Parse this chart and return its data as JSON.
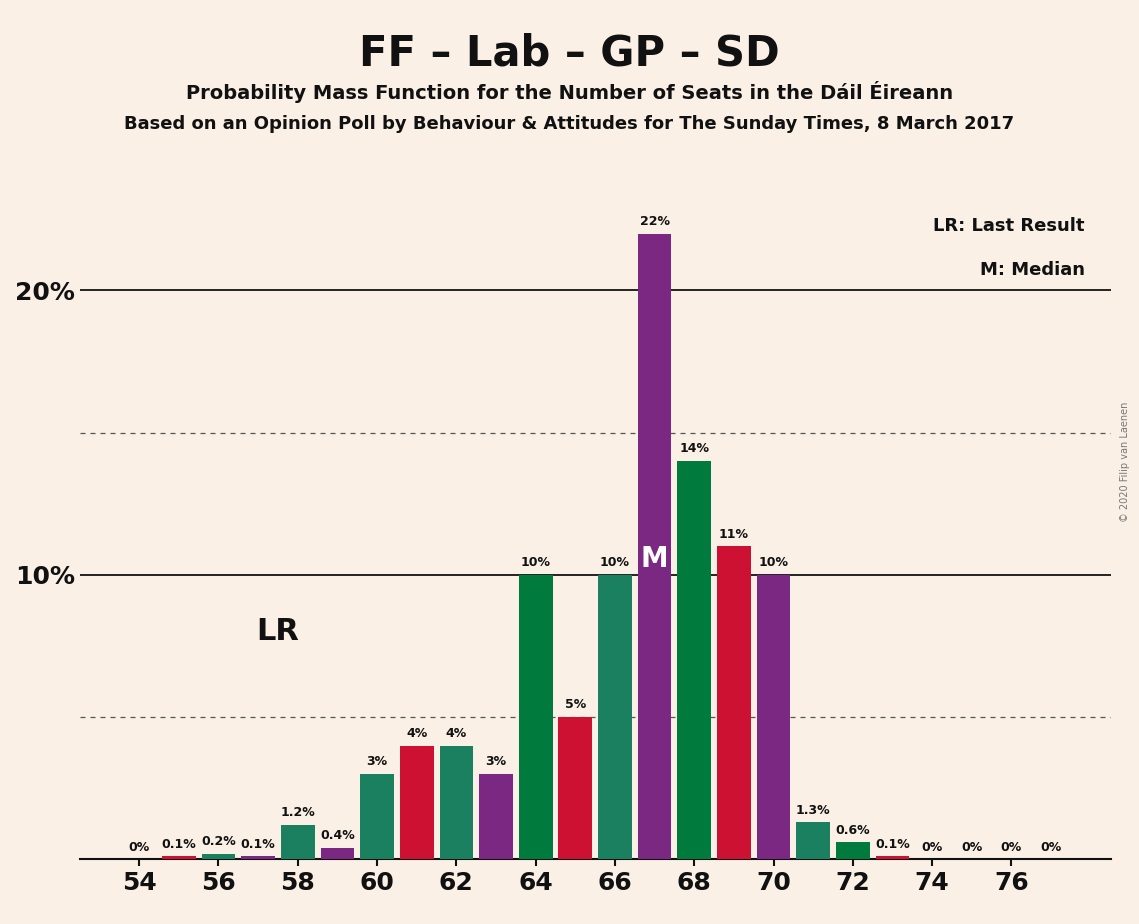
{
  "title": "FF – Lab – GP – SD",
  "subtitle1": "Probability Mass Function for the Number of Seats in the Dáil Éireann",
  "subtitle2": "Based on an Opinion Poll by Behaviour & Attitudes for The Sunday Times, 8 March 2017",
  "copyright": "© 2020 Filip van Laenen",
  "background_color": "#FAF0E6",
  "colors": {
    "FF": "#007A3D",
    "Lab": "#CC1133",
    "GP": "#1A8060",
    "SD": "#7B2882"
  },
  "bar_data": [
    {
      "seat": 54,
      "party": "FF",
      "value": 0.0
    },
    {
      "seat": 55,
      "party": "Lab",
      "value": 0.1
    },
    {
      "seat": 56,
      "party": "GP",
      "value": 0.2
    },
    {
      "seat": 57,
      "party": "SD",
      "value": 0.1
    },
    {
      "seat": 58,
      "party": "GP",
      "value": 1.2
    },
    {
      "seat": 59,
      "party": "SD",
      "value": 0.4
    },
    {
      "seat": 60,
      "party": "GP",
      "value": 3.0
    },
    {
      "seat": 61,
      "party": "Lab",
      "value": 4.0
    },
    {
      "seat": 62,
      "party": "GP",
      "value": 4.0
    },
    {
      "seat": 63,
      "party": "SD",
      "value": 3.0
    },
    {
      "seat": 64,
      "party": "FF",
      "value": 10.0
    },
    {
      "seat": 65,
      "party": "Lab",
      "value": 5.0
    },
    {
      "seat": 66,
      "party": "GP",
      "value": 10.0
    },
    {
      "seat": 67,
      "party": "SD",
      "value": 22.0
    },
    {
      "seat": 68,
      "party": "FF",
      "value": 14.0
    },
    {
      "seat": 69,
      "party": "Lab",
      "value": 11.0
    },
    {
      "seat": 70,
      "party": "SD",
      "value": 10.0
    },
    {
      "seat": 71,
      "party": "GP",
      "value": 1.3
    },
    {
      "seat": 72,
      "party": "FF",
      "value": 0.6
    },
    {
      "seat": 73,
      "party": "Lab",
      "value": 0.1
    },
    {
      "seat": 74,
      "party": "FF",
      "value": 0.0
    },
    {
      "seat": 75,
      "party": "Lab",
      "value": 0.0
    },
    {
      "seat": 76,
      "party": "FF",
      "value": 0.0
    },
    {
      "seat": 77,
      "party": "Lab",
      "value": 0.0
    }
  ],
  "lr_label": "LR",
  "lr_x": 57.5,
  "lr_y": 8.0,
  "median_label": "M",
  "median_seat": 67,
  "median_party": "SD",
  "xticks": [
    54,
    56,
    58,
    60,
    62,
    64,
    66,
    68,
    70,
    72,
    74,
    76
  ],
  "xlim": [
    52.5,
    78.5
  ],
  "ylim": [
    0,
    25.5
  ],
  "yticks_solid": [
    10.0,
    20.0
  ],
  "yticks_dotted": [
    5.0,
    15.0
  ],
  "bar_width": 0.85,
  "title_fontsize": 30,
  "subtitle1_fontsize": 14,
  "subtitle2_fontsize": 13,
  "tick_fontsize": 18,
  "legend_fontsize": 13,
  "pct_fontsize": 9,
  "lr_fontsize": 22
}
